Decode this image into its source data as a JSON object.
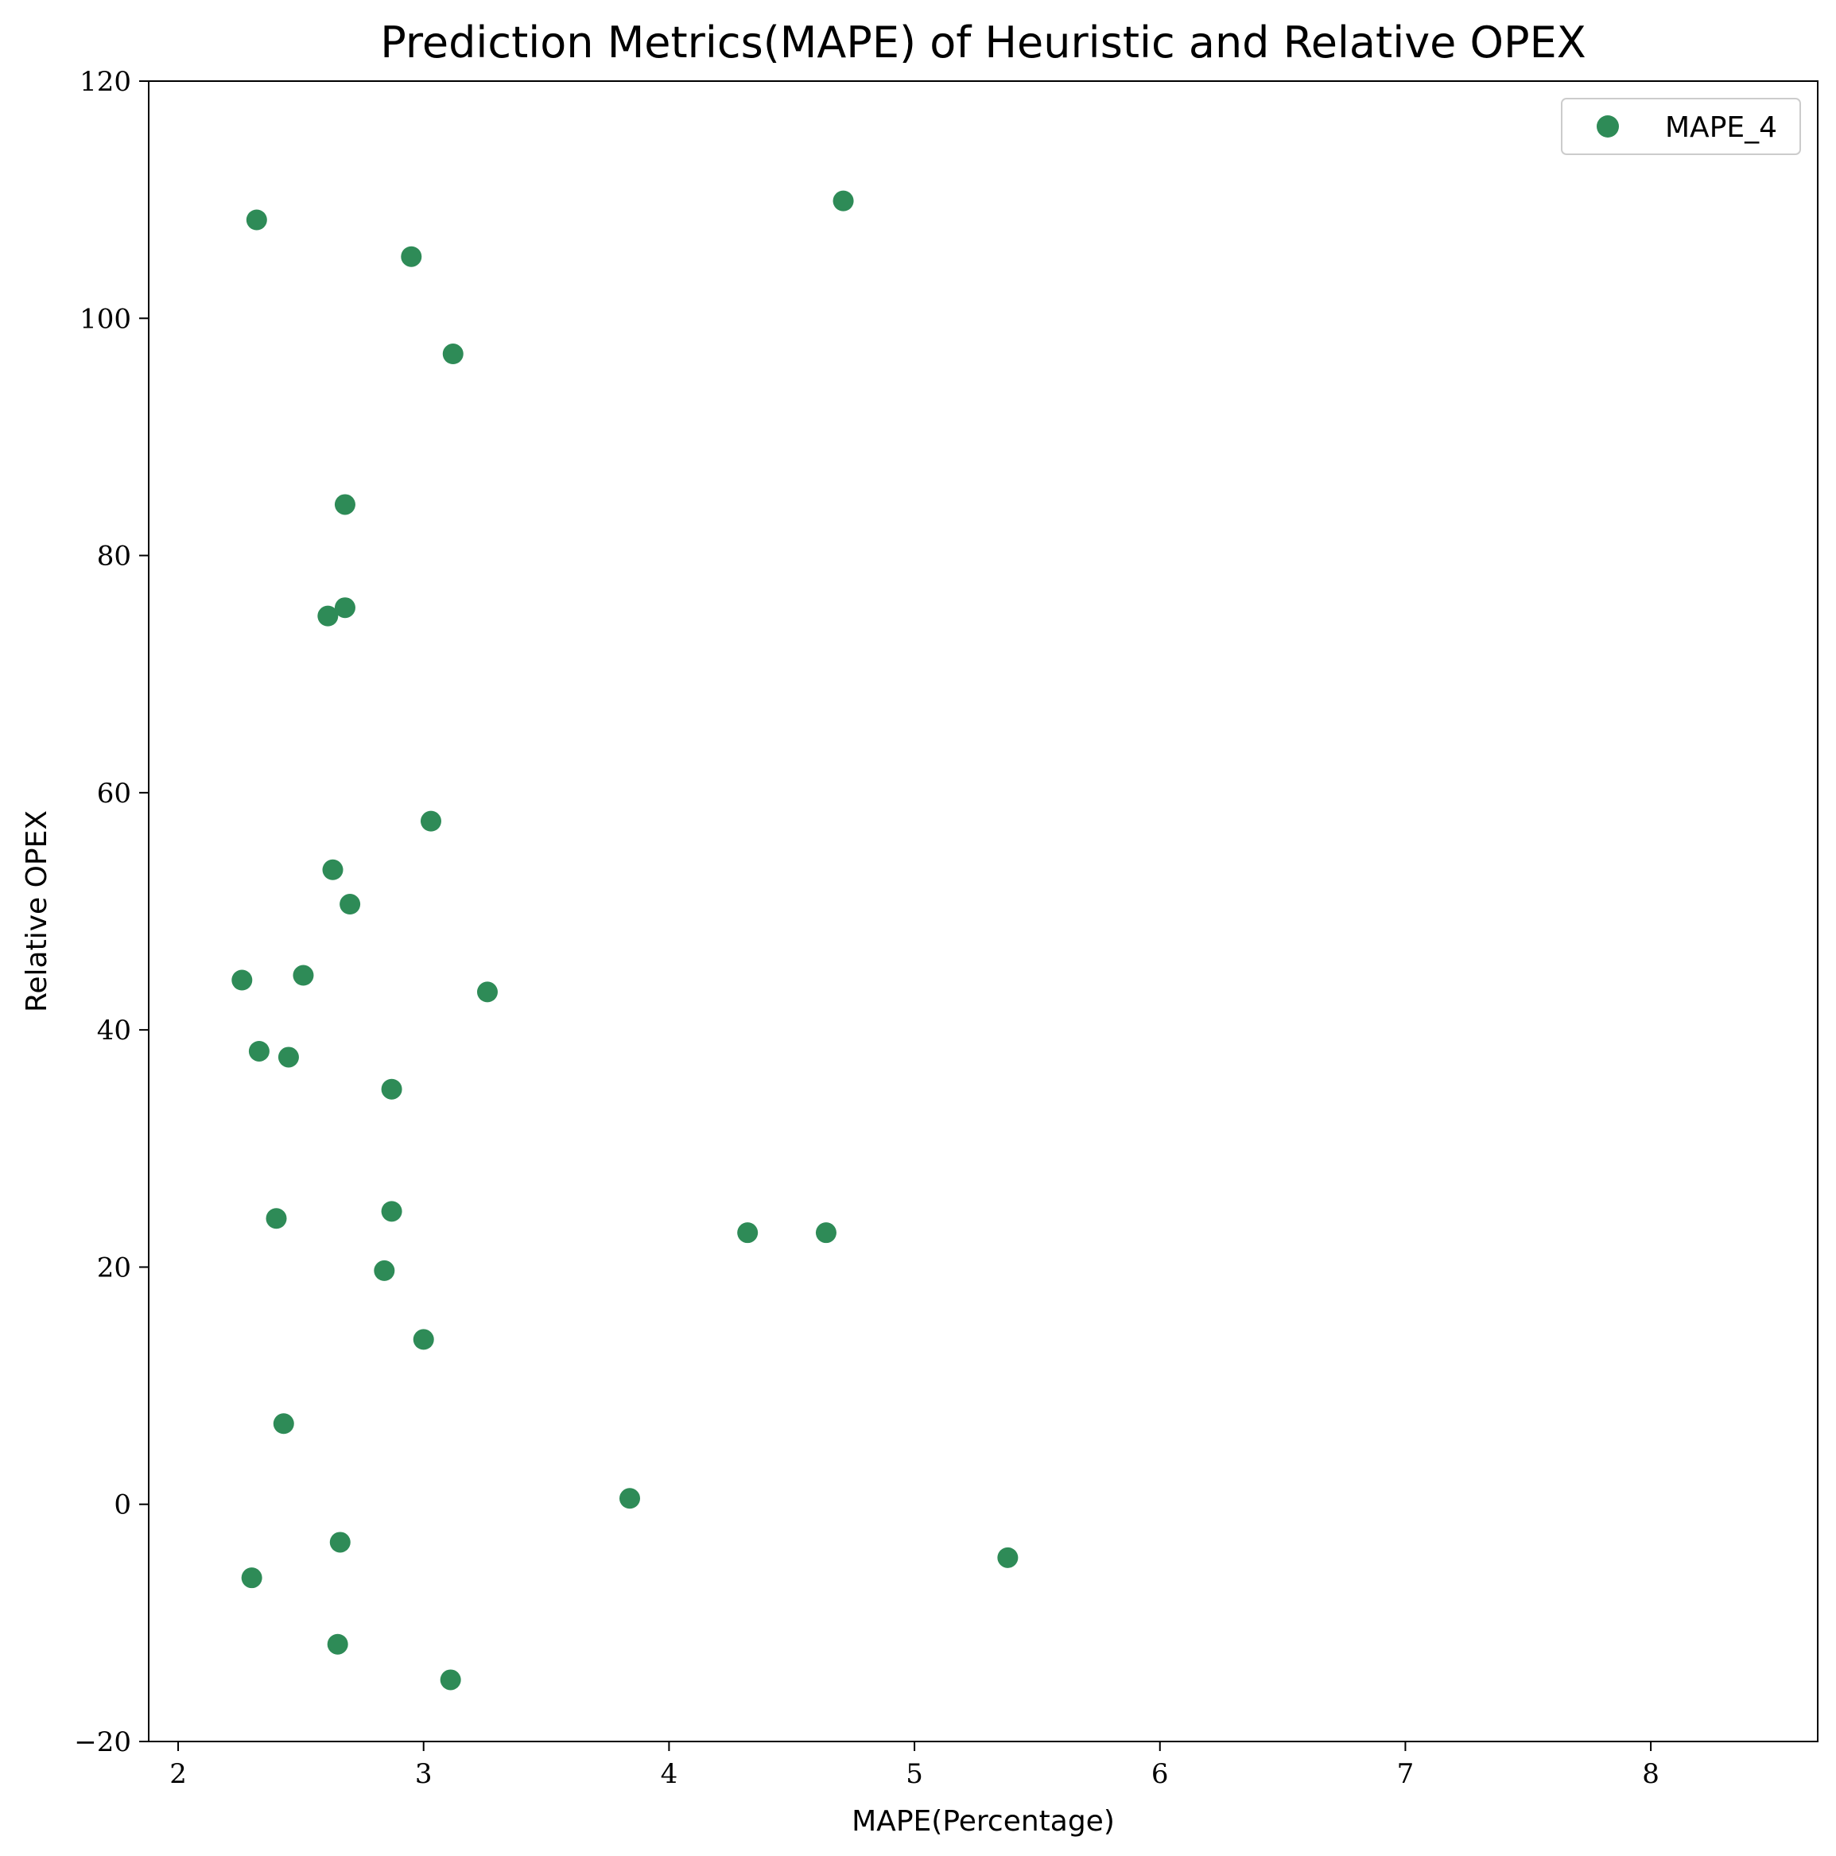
{
  "chart_data": {
    "type": "scatter",
    "title": "Prediction Metrics(MAPE) of Heuristic and Relative OPEX",
    "xlabel": "MAPE(Percentage)",
    "ylabel": "Relative OPEX",
    "xlim": [
      1.88,
      8.68
    ],
    "ylim": [
      -20,
      120
    ],
    "xticks": [
      2,
      3,
      4,
      5,
      6,
      7,
      8
    ],
    "xtick_labels": [
      "2",
      "3",
      "4",
      "5",
      "6",
      "7",
      "8"
    ],
    "yticks": [
      -20,
      0,
      20,
      40,
      60,
      80,
      100,
      120
    ],
    "ytick_labels": [
      "−20",
      "0",
      "20",
      "40",
      "60",
      "80",
      "100",
      "120"
    ],
    "grid": false,
    "legend_position": "top-right",
    "series": [
      {
        "name": "MAPE_4",
        "color": "#2e8b57",
        "points": [
          {
            "x": 2.32,
            "y": 108.3
          },
          {
            "x": 4.71,
            "y": 109.9
          },
          {
            "x": 2.95,
            "y": 105.2
          },
          {
            "x": 3.12,
            "y": 97.0
          },
          {
            "x": 2.68,
            "y": 84.3
          },
          {
            "x": 2.61,
            "y": 74.9
          },
          {
            "x": 2.68,
            "y": 75.6
          },
          {
            "x": 3.03,
            "y": 57.6
          },
          {
            "x": 2.63,
            "y": 53.5
          },
          {
            "x": 2.7,
            "y": 50.6
          },
          {
            "x": 2.26,
            "y": 44.2
          },
          {
            "x": 2.51,
            "y": 44.6
          },
          {
            "x": 3.26,
            "y": 43.2
          },
          {
            "x": 2.33,
            "y": 38.2
          },
          {
            "x": 2.45,
            "y": 37.7
          },
          {
            "x": 2.87,
            "y": 35.0
          },
          {
            "x": 2.87,
            "y": 24.7
          },
          {
            "x": 2.4,
            "y": 24.1
          },
          {
            "x": 4.32,
            "y": 22.9
          },
          {
            "x": 4.64,
            "y": 22.9
          },
          {
            "x": 2.84,
            "y": 19.7
          },
          {
            "x": 3.0,
            "y": 13.9
          },
          {
            "x": 2.43,
            "y": 6.8
          },
          {
            "x": 3.84,
            "y": 0.5
          },
          {
            "x": 2.66,
            "y": -3.2
          },
          {
            "x": 5.38,
            "y": -4.5
          },
          {
            "x": 2.3,
            "y": -6.2
          },
          {
            "x": 2.65,
            "y": -11.8
          },
          {
            "x": 3.11,
            "y": -14.8
          }
        ]
      }
    ]
  }
}
